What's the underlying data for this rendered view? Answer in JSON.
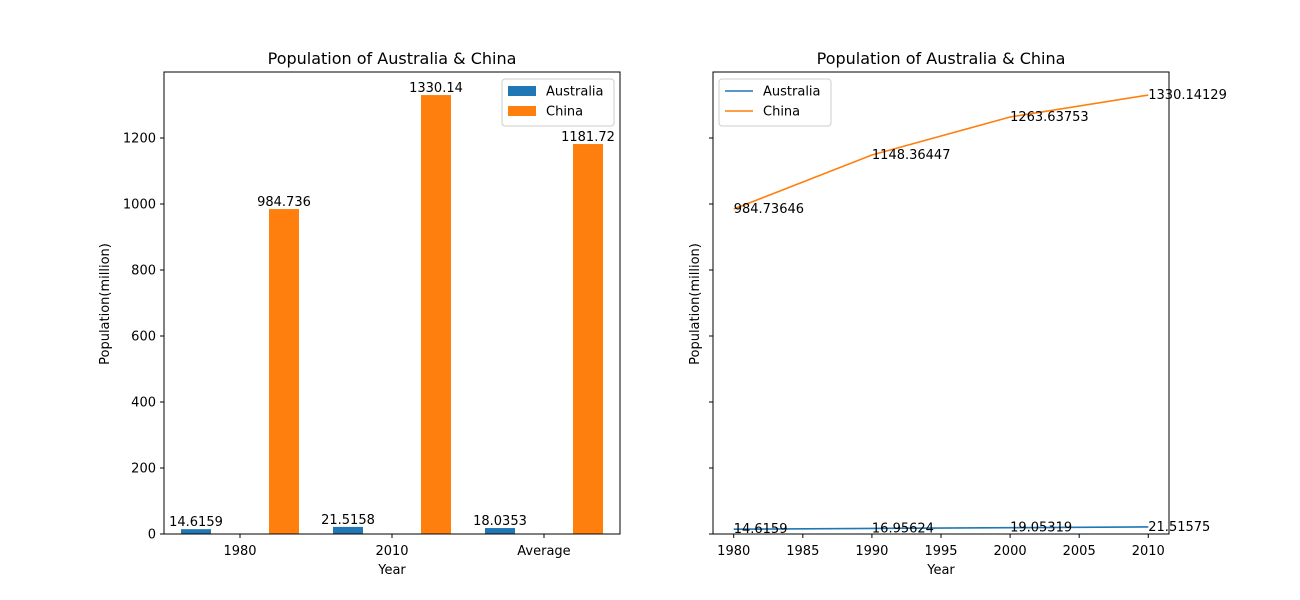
{
  "chart_data": [
    {
      "type": "bar",
      "title": "Population of Australia & China",
      "xlabel": "Year",
      "ylabel": "Population(million)",
      "categories": [
        "1980",
        "2010",
        "Average"
      ],
      "ylim": [
        0,
        1400
      ],
      "yticks": [
        0,
        200,
        400,
        600,
        800,
        1000,
        1200
      ],
      "legend_position": "upper right",
      "series": [
        {
          "name": "Australia",
          "color": "#1f77b4",
          "values": [
            14.6159,
            21.5158,
            18.0353
          ],
          "labels": [
            "14.6159",
            "21.5158",
            "18.0353"
          ]
        },
        {
          "name": "China",
          "color": "#ff7f0e",
          "values": [
            984.736,
            1330.14,
            1181.72
          ],
          "labels": [
            "984.736",
            "1330.14",
            "1181.72"
          ]
        }
      ]
    },
    {
      "type": "line",
      "title": "Population of Australia & China",
      "xlabel": "Year",
      "ylabel": "Population(million)",
      "x": [
        1980,
        1990,
        2000,
        2010
      ],
      "xlim": [
        1978.5,
        2011.5
      ],
      "xticks": [
        1980,
        1985,
        1990,
        1995,
        2000,
        2005,
        2010
      ],
      "ylim": [
        0,
        1400
      ],
      "shared_y_tick_labels_hidden": true,
      "legend_position": "upper left",
      "series": [
        {
          "name": "Australia",
          "color": "#1f77b4",
          "values": [
            14.6159,
            16.95624,
            19.05319,
            21.51575
          ],
          "labels": [
            "14.6159",
            "16.95624",
            "19.05319",
            "21.51575"
          ]
        },
        {
          "name": "China",
          "color": "#ff7f0e",
          "values": [
            984.73646,
            1148.36447,
            1263.63753,
            1330.14129
          ],
          "labels": [
            "984.73646",
            "1148.36447",
            "1263.63753",
            "1330.14129"
          ]
        }
      ]
    }
  ]
}
